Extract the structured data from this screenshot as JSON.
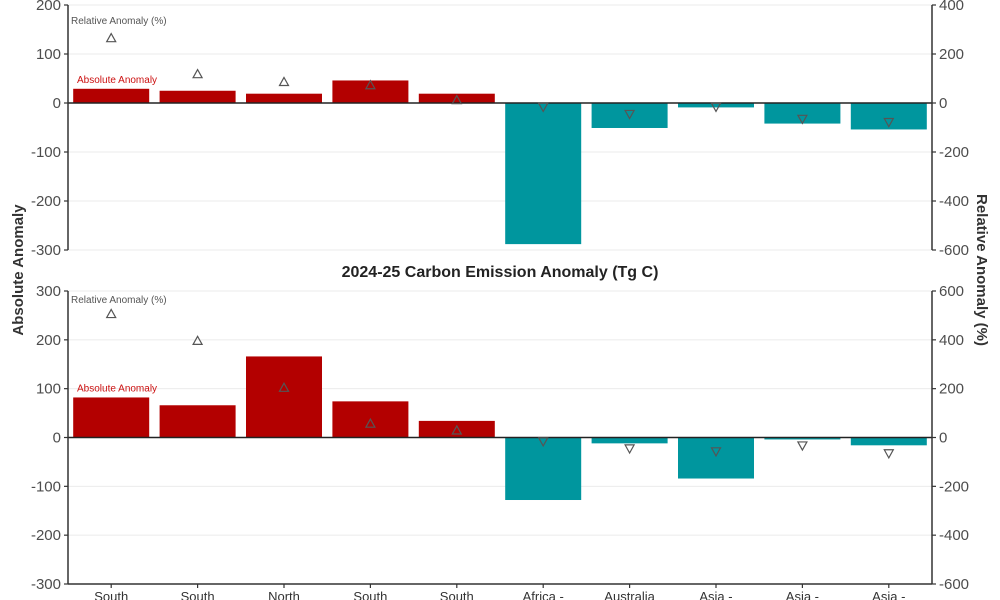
{
  "chart_data": [
    {
      "type": "bar",
      "title": "",
      "panel": "top",
      "categories": [
        "South",
        "South",
        "North",
        "South",
        "South",
        "Africa -",
        "Australia",
        "Asia -",
        "Asia -",
        "Asia -"
      ],
      "series": [
        {
          "name": "Absolute Anomaly",
          "axis": "left",
          "values": [
            29,
            25,
            19,
            46,
            19,
            -288,
            -51,
            -9,
            -42,
            -54
          ]
        },
        {
          "name": "Relative Anomaly (%)",
          "axis": "right",
          "values": [
            265,
            118,
            86,
            73,
            12,
            -16,
            -45,
            -16,
            -65,
            -78
          ]
        }
      ],
      "ylabel": "Absolute Anomaly",
      "y2label": "Relative Anomaly (%)",
      "ylim": [
        -300,
        200
      ],
      "y2lim": [
        -600,
        400
      ],
      "yticks": [
        200,
        100,
        0,
        -100,
        -200,
        -300
      ],
      "y2ticks": [
        400,
        200,
        0,
        -200,
        -400,
        -600
      ],
      "annotations": [
        "Relative Anomaly (%)",
        "Absolute Anomaly"
      ],
      "grid": true
    },
    {
      "type": "bar",
      "title": "2024-25 Carbon Emission Anomaly (Tg C)",
      "panel": "bottom",
      "categories": [
        "South",
        "South",
        "North",
        "South",
        "South",
        "Africa -",
        "Australia",
        "Asia -",
        "Asia -",
        "Asia -"
      ],
      "series": [
        {
          "name": "Absolute Anomaly",
          "axis": "left",
          "values": [
            82,
            66,
            166,
            74,
            34,
            -128,
            -12,
            -84,
            -4,
            -16
          ]
        },
        {
          "name": "Relative Anomaly (%)",
          "axis": "right",
          "values": [
            506,
            396,
            204,
            57,
            29,
            -16,
            -45,
            -57,
            -33,
            -65
          ]
        }
      ],
      "ylabel": "Absolute Anomaly",
      "y2label": "Relative Anomaly (%)",
      "ylim": [
        -300,
        300
      ],
      "y2lim": [
        -600,
        600
      ],
      "yticks": [
        300,
        200,
        100,
        0,
        -100,
        -200,
        -300
      ],
      "y2ticks": [
        600,
        400,
        200,
        0,
        -200,
        -400,
        -600
      ],
      "annotations": [
        "Relative Anomaly (%)",
        "Absolute Anomaly"
      ],
      "grid": true
    }
  ],
  "labels": {
    "shared_ylabel": "Absolute Anomaly",
    "shared_y2label": "Relative Anomaly (%)",
    "bottom_title": "2024-25 Carbon Emission Anomaly (Tg C)",
    "annot_relative": "Relative Anomaly (%)",
    "annot_absolute": "Absolute Anomaly"
  },
  "colors": {
    "positive": "#b30000",
    "negative": "#00969e",
    "marker": "#555555",
    "annot_absolute": "#cc1111"
  }
}
